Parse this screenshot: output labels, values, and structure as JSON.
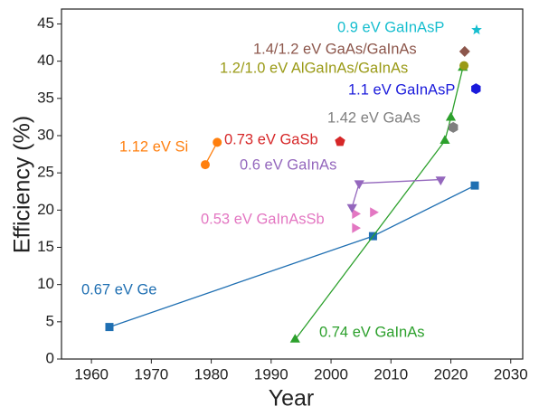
{
  "chart_data": {
    "type": "scatter",
    "x_label": "Year",
    "y_label": "Efficiency (%)",
    "xlim": [
      1955,
      2032
    ],
    "ylim": [
      0,
      47
    ],
    "xticks": [
      1960,
      1970,
      1980,
      1990,
      2000,
      2010,
      2020,
      2030
    ],
    "yticks": [
      0,
      5,
      10,
      15,
      20,
      25,
      30,
      35,
      40,
      45
    ],
    "series": [
      {
        "name": "0.67 eV Ge",
        "color": "#1f6fb2",
        "marker": "square",
        "line": true,
        "x": [
          1963,
          2007,
          2024
        ],
        "values": [
          4.3,
          16.5,
          23.3
        ]
      },
      {
        "name": "0.74 eV GaInAs",
        "color": "#2ca02c",
        "marker": "triangle-up",
        "line": true,
        "x": [
          1994,
          2019,
          2020,
          2022
        ],
        "values": [
          2.6,
          29.3,
          32.4,
          39.1
        ]
      },
      {
        "name": "0.53 eV GaInAsSb",
        "color": "#e377c2",
        "marker": "triangle-right",
        "line": false,
        "x": [
          2004,
          2004,
          2007
        ],
        "values": [
          17.6,
          19.5,
          19.7
        ]
      },
      {
        "name": "0.6 eV GaInAs",
        "color": "#9467bd",
        "marker": "triangle-down",
        "line": true,
        "x": [
          2003.5,
          2004.7,
          2018.3
        ],
        "values": [
          20.4,
          23.6,
          24.1
        ]
      },
      {
        "name": "0.73 eV GaSb",
        "color": "#d62728",
        "marker": "pentagon",
        "line": false,
        "x": [
          2001.5
        ],
        "values": [
          29.2
        ]
      },
      {
        "name": "1.12 eV Si",
        "color": "#ff7f0e",
        "marker": "circle",
        "line": true,
        "x": [
          1979,
          1981
        ],
        "values": [
          26.1,
          29.1
        ]
      },
      {
        "name": "1.42 eV GaAs",
        "color": "#7f7f7f",
        "marker": "hexagon",
        "line": false,
        "x": [
          2020.4
        ],
        "values": [
          31.1
        ]
      },
      {
        "name": "1.1 eV GaInAsP",
        "color": "#1a1adb",
        "marker": "hexagon",
        "line": false,
        "x": [
          2024.2
        ],
        "values": [
          36.3
        ]
      },
      {
        "name": "1.2/1.0 eV AlGaInAs/GaInAs",
        "color": "#9a9a16",
        "marker": "circle",
        "line": false,
        "x": [
          2022.2
        ],
        "values": [
          39.4
        ]
      },
      {
        "name": "1.4/1.2 eV GaAs/GaInAs",
        "color": "#8c564b",
        "marker": "diamond",
        "line": false,
        "x": [
          2022.3
        ],
        "values": [
          41.3
        ]
      },
      {
        "name": "0.9 eV GaInAsP",
        "color": "#17becf",
        "marker": "star",
        "line": false,
        "x": [
          2024.3
        ],
        "values": [
          44.2
        ]
      }
    ]
  }
}
